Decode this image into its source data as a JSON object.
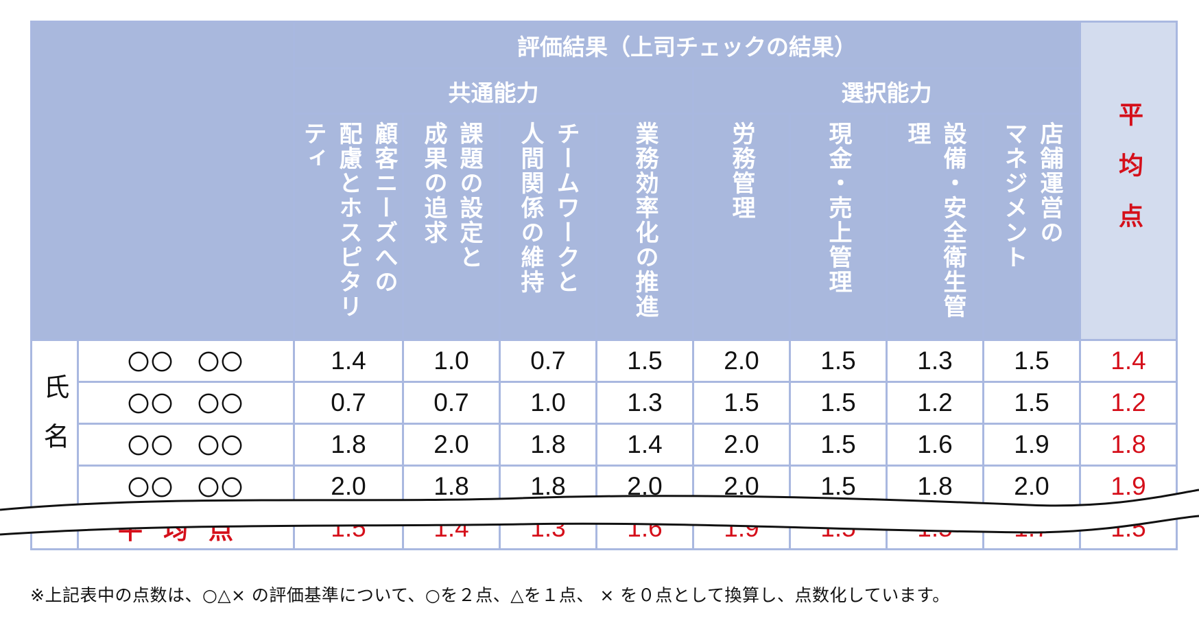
{
  "header": {
    "group_title": "評価結果（上司チェックの結果）",
    "common": "共通能力",
    "selective": "選択能力",
    "average": "平均点",
    "columns": [
      "顧客ニーズへの配慮とホスピタリティ",
      "課題の設定と成果の追求",
      "チームワークと人間関係の維持",
      "業務効率化の推進",
      "労務管理",
      "現金・売上管理",
      "設備・安全衛生管理",
      "店舗運営のマネジメント"
    ],
    "columns_lines": [
      [
        "顧客ニーズへの",
        "配慮とホスピタリティ"
      ],
      [
        "課題の設定と",
        "成果の追求"
      ],
      [
        "チームワークと",
        "人間関係の維持"
      ],
      [
        "業務効率化の推進"
      ],
      [
        "労務管理"
      ],
      [
        "現金・売上管理"
      ],
      [
        "設備・安全衛生管理"
      ],
      [
        "店舗運営の",
        "マネジメント"
      ]
    ]
  },
  "row_group_label": "氏名",
  "rows": [
    {
      "name": "〇〇　〇〇",
      "values": [
        "1.4",
        "1.0",
        "0.7",
        "1.5",
        "2.0",
        "1.5",
        "1.3",
        "1.5"
      ],
      "avg": "1.4"
    },
    {
      "name": "〇〇　〇〇",
      "values": [
        "0.7",
        "0.7",
        "1.0",
        "1.3",
        "1.5",
        "1.5",
        "1.2",
        "1.5"
      ],
      "avg": "1.2"
    },
    {
      "name": "〇〇　〇〇",
      "values": [
        "1.8",
        "2.0",
        "1.8",
        "1.4",
        "2.0",
        "1.5",
        "1.6",
        "1.9"
      ],
      "avg": "1.8"
    },
    {
      "name": "〇〇　〇〇",
      "values": [
        "2.0",
        "1.8",
        "1.8",
        "2.0",
        "2.0",
        "1.5",
        "1.8",
        "2.0"
      ],
      "avg": "1.9"
    }
  ],
  "average_row": {
    "label": "平均点",
    "values": [
      "1.5",
      "1.4",
      "1.3",
      "1.6",
      "1.9",
      "1.5",
      "1.5",
      "1.7"
    ],
    "avg": "1.5"
  },
  "footnote": "※上記表中の点数は、○△× の評価基準について、○を２点、△を１点、 × を０点として換算し、点数化しています。",
  "colors": {
    "header_bg": "#a9b8dd",
    "avg_header_bg": "#d3dcee",
    "accent_red": "#d50f1a",
    "border": "#a9b8e0"
  }
}
